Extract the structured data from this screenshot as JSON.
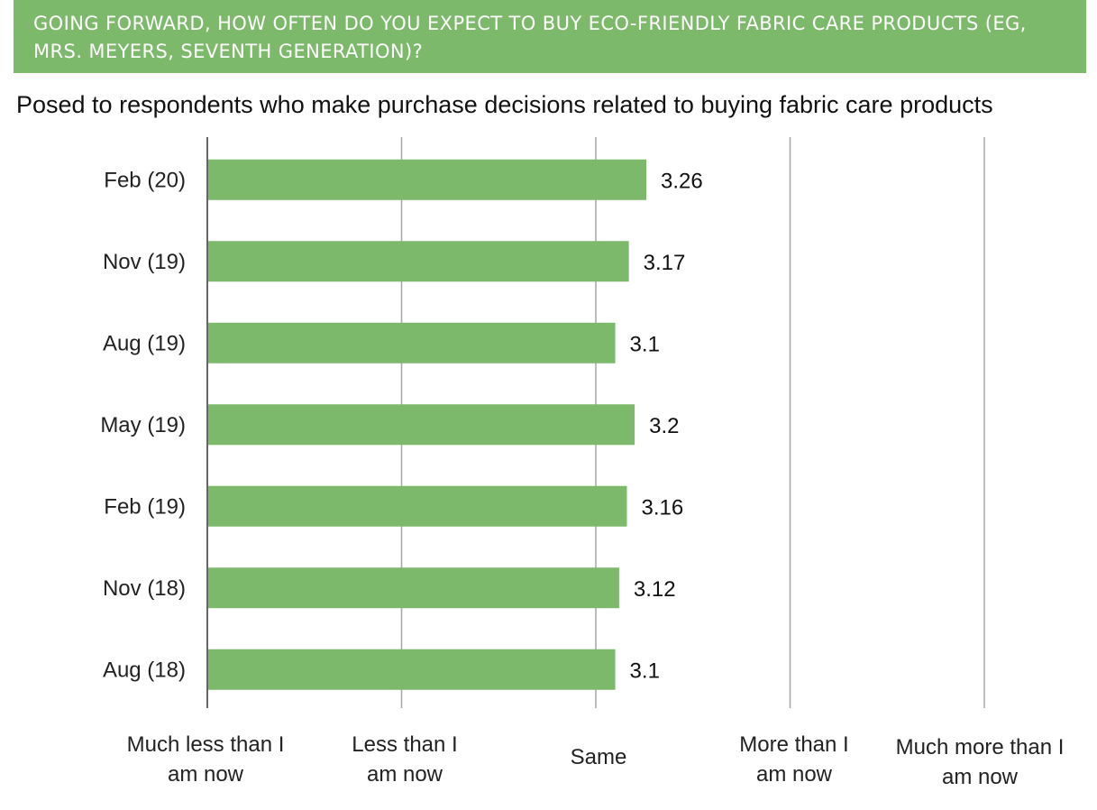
{
  "chart_data": {
    "type": "bar",
    "orientation": "horizontal",
    "title": "GOING FORWARD, HOW OFTEN DO YOU EXPECT TO BUY ECO-FRIENDLY FABRIC CARE PRODUCTS (EG, MRS. MEYERS, SEVENTH GENERATION)?",
    "subtitle": "Posed to respondents who make purchase decisions related to buying fabric care products",
    "categories": [
      "Feb (20)",
      "Nov (19)",
      "Aug (19)",
      "May (19)",
      "Feb (19)",
      "Nov (18)",
      "Aug (18)"
    ],
    "values": [
      3.26,
      3.17,
      3.1,
      3.2,
      3.16,
      3.12,
      3.1
    ],
    "value_labels": [
      "3.26",
      "3.17",
      "3.1",
      "3.2",
      "3.16",
      "3.12",
      "3.1"
    ],
    "xlim": [
      1,
      5
    ],
    "x_ticks": [
      {
        "value": 1,
        "label": [
          "Much less than I",
          "am now"
        ]
      },
      {
        "value": 2,
        "label": [
          "Less than I",
          "am now"
        ]
      },
      {
        "value": 3,
        "label": [
          "Same"
        ]
      },
      {
        "value": 4,
        "label": [
          "More than I",
          "am now"
        ]
      },
      {
        "value": 5,
        "label": [
          "Much more than I",
          "am now"
        ]
      }
    ],
    "grid": true,
    "legend": "none",
    "colors": {
      "bar": "#7db96b",
      "banner": "#7db96b",
      "gridline": "#a6a6a6",
      "axis": "#333333"
    }
  }
}
